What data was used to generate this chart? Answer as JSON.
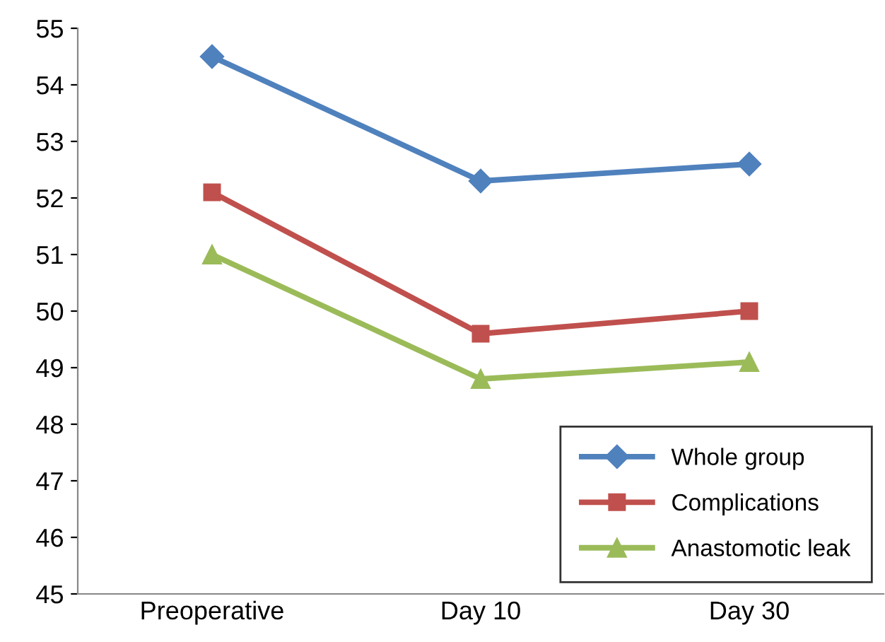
{
  "chart_data": {
    "type": "line",
    "categories": [
      "Preoperative",
      "Day 10",
      "Day 30"
    ],
    "series": [
      {
        "name": "Whole group",
        "color": "#4f81bd",
        "marker": "diamond",
        "values": [
          54.5,
          52.3,
          52.6
        ]
      },
      {
        "name": "Complications",
        "color": "#c0504d",
        "marker": "square",
        "values": [
          52.1,
          49.6,
          50.0
        ]
      },
      {
        "name": "Anastomotic leak",
        "color": "#9bbb59",
        "marker": "triangle",
        "values": [
          51.0,
          48.8,
          49.1
        ]
      }
    ],
    "ylim": [
      45,
      55
    ],
    "yticks": [
      45,
      46,
      47,
      48,
      49,
      50,
      51,
      52,
      53,
      54,
      55
    ],
    "grid": false,
    "legend": "bottom right",
    "line_style": "solid"
  }
}
